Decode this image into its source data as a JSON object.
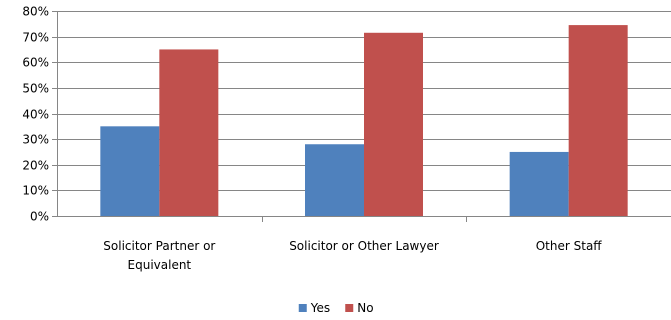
{
  "chart_data": {
    "type": "bar",
    "title": "",
    "xlabel": "",
    "ylabel": "",
    "categories": [
      [
        "Solicitor Partner or",
        "Equivalent"
      ],
      [
        "Solicitor or Other Lawyer"
      ],
      [
        "Other Staff"
      ]
    ],
    "series": [
      {
        "name": "Yes",
        "values": [
          35,
          28,
          25
        ],
        "color": "#4F81BD"
      },
      {
        "name": "No",
        "values": [
          65,
          71.5,
          74.5
        ],
        "color": "#C0504D"
      }
    ],
    "ylim": [
      0,
      80
    ],
    "yticks": [
      0,
      10,
      20,
      30,
      40,
      50,
      60,
      70,
      80
    ],
    "ytick_labels": [
      "0%",
      "10%",
      "20%",
      "30%",
      "40%",
      "50%",
      "60%",
      "70%",
      "80%"
    ],
    "grid": true,
    "legend_position": "bottom"
  }
}
